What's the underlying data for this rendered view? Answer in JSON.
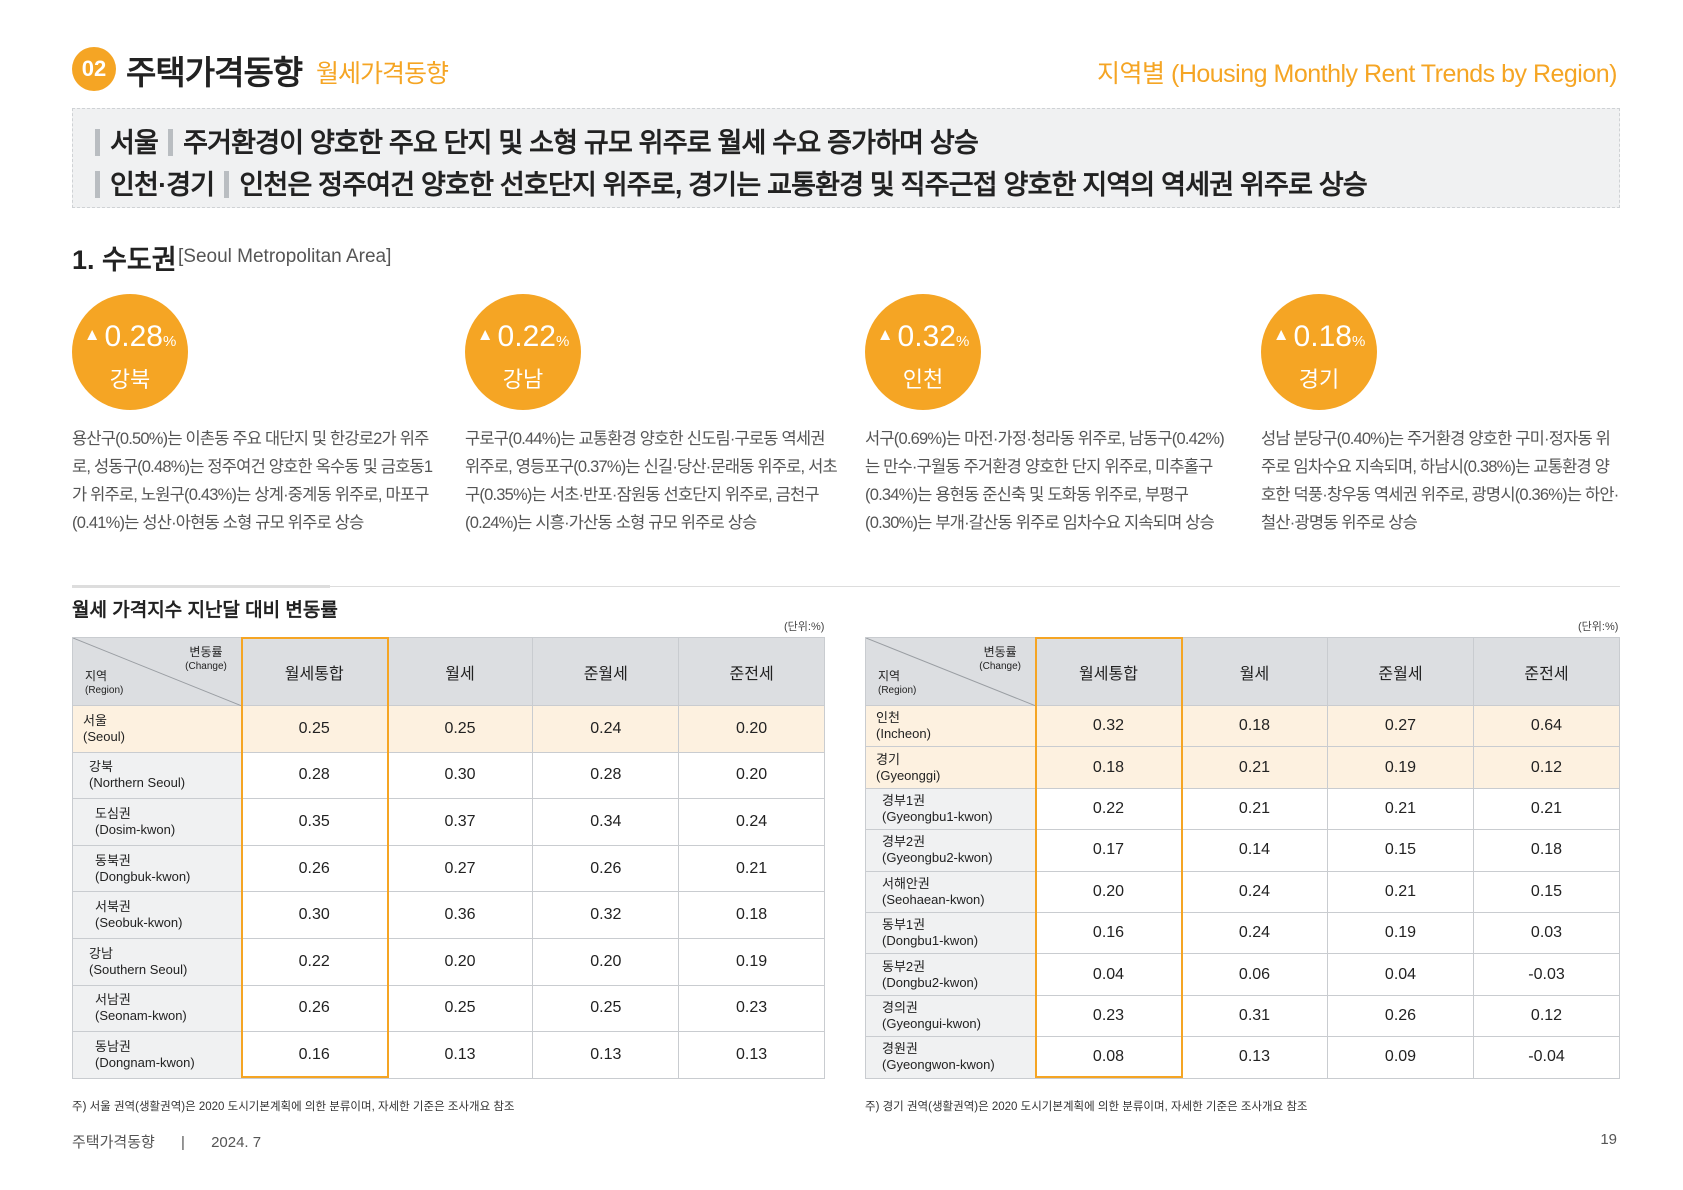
{
  "header": {
    "section_num": "02",
    "title": "주택가격동향",
    "subtitle": "월세가격동향",
    "right_title": "지역별 (Housing Monthly Rent Trends by Region)"
  },
  "summary": [
    {
      "region": "서울",
      "text": "주거환경이 양호한 주요 단지 및 소형 규모 위주로 월세 수요 증가하며 상승"
    },
    {
      "region": "인천·경기",
      "text": "인천은 정주여건 양호한 선호단지 위주로, 경기는 교통환경 및 직주근접 양호한 지역의 역세권 위주로 상승"
    }
  ],
  "section": {
    "title": "1. 수도권",
    "subtitle": "[Seoul Metropolitan Area]"
  },
  "indicators": [
    {
      "arrow": "▲",
      "value": "0.28",
      "unit": "%",
      "name": "강북",
      "desc": "용산구(0.50%)는 이촌동 주요 대단지 및 한강로2가 위주로, 성동구(0.48%)는 정주여건 양호한 옥수동 및 금호동1가 위주로, 노원구(0.43%)는 상계·중계동 위주로, 마포구(0.41%)는 성산·아현동 소형 규모 위주로 상승"
    },
    {
      "arrow": "▲",
      "value": "0.22",
      "unit": "%",
      "name": "강남",
      "desc": "구로구(0.44%)는 교통환경 양호한 신도림·구로동 역세권 위주로, 영등포구(0.37%)는 신길·당산·문래동 위주로, 서초구(0.35%)는 서초·반포·잠원동 선호단지 위주로, 금천구(0.24%)는 시흥·가산동 소형 규모 위주로 상승"
    },
    {
      "arrow": "▲",
      "value": "0.32",
      "unit": "%",
      "name": "인천",
      "desc": "서구(0.69%)는 마전·가정·청라동 위주로, 남동구(0.42%)는 만수·구월동 주거환경 양호한 단지 위주로, 미추홀구(0.34%)는 용현동 준신축 및 도화동 위주로, 부평구(0.30%)는 부개·갈산동 위주로 임차수요 지속되며 상승"
    },
    {
      "arrow": "▲",
      "value": "0.18",
      "unit": "%",
      "name": "경기",
      "desc": "성남 분당구(0.40%)는 주거환경 양호한 구미·정자동 위주로 임차수요 지속되며, 하남시(0.38%)는 교통환경 양호한 덕풍·창우동 역세권 위주로, 광명시(0.36%)는 하안·철산·광명동 위주로 상승"
    }
  ],
  "table_title": "월세 가격지수 지난달 대비 변동률",
  "unit_label": "(단위:%)",
  "diag_header": {
    "change_ko": "변동률",
    "change_en": "(Change)",
    "region_ko": "지역",
    "region_en": "(Region)"
  },
  "columns": [
    "월세통합",
    "월세",
    "준월세",
    "준전세"
  ],
  "left_table": {
    "rows": [
      {
        "ko": "서울",
        "en": "(Seoul)",
        "values": [
          "0.25",
          "0.25",
          "0.24",
          "0.20"
        ],
        "highlight": true,
        "indent": 0
      },
      {
        "ko": "강북",
        "en": "(Northern Seoul)",
        "values": [
          "0.28",
          "0.30",
          "0.28",
          "0.20"
        ],
        "indent": 1
      },
      {
        "ko": "도심권",
        "en": "(Dosim-kwon)",
        "values": [
          "0.35",
          "0.37",
          "0.34",
          "0.24"
        ],
        "indent": 2
      },
      {
        "ko": "동북권",
        "en": "(Dongbuk-kwon)",
        "values": [
          "0.26",
          "0.27",
          "0.26",
          "0.21"
        ],
        "indent": 2
      },
      {
        "ko": "서북권",
        "en": "(Seobuk-kwon)",
        "values": [
          "0.30",
          "0.36",
          "0.32",
          "0.18"
        ],
        "indent": 2
      },
      {
        "ko": "강남",
        "en": "(Southern Seoul)",
        "values": [
          "0.22",
          "0.20",
          "0.20",
          "0.19"
        ],
        "indent": 1
      },
      {
        "ko": "서남권",
        "en": "(Seonam-kwon)",
        "values": [
          "0.26",
          "0.25",
          "0.25",
          "0.23"
        ],
        "indent": 2
      },
      {
        "ko": "동남권",
        "en": "(Dongnam-kwon)",
        "values": [
          "0.16",
          "0.13",
          "0.13",
          "0.13"
        ],
        "indent": 2
      }
    ],
    "footnote": "주) 서울 권역(생활권역)은 2020 도시기본계획에 의한 분류이며, 자세한 기준은 조사개요 참조"
  },
  "right_table": {
    "rows": [
      {
        "ko": "인천",
        "en": "(Incheon)",
        "values": [
          "0.32",
          "0.18",
          "0.27",
          "0.64"
        ],
        "highlight": true,
        "indent": 0
      },
      {
        "ko": "경기",
        "en": "(Gyeonggi)",
        "values": [
          "0.18",
          "0.21",
          "0.19",
          "0.12"
        ],
        "highlight": true,
        "indent": 0
      },
      {
        "ko": "경부1권",
        "en": "(Gyeongbu1-kwon)",
        "values": [
          "0.22",
          "0.21",
          "0.21",
          "0.21"
        ],
        "indent": 1
      },
      {
        "ko": "경부2권",
        "en": "(Gyeongbu2-kwon)",
        "values": [
          "0.17",
          "0.14",
          "0.15",
          "0.18"
        ],
        "indent": 1
      },
      {
        "ko": "서해안권",
        "en": "(Seohaean-kwon)",
        "values": [
          "0.20",
          "0.24",
          "0.21",
          "0.15"
        ],
        "indent": 1
      },
      {
        "ko": "동부1권",
        "en": "(Dongbu1-kwon)",
        "values": [
          "0.16",
          "0.24",
          "0.19",
          "0.03"
        ],
        "indent": 1
      },
      {
        "ko": "동부2권",
        "en": "(Dongbu2-kwon)",
        "values": [
          "0.04",
          "0.06",
          "0.04",
          "-0.03"
        ],
        "indent": 1
      },
      {
        "ko": "경의권",
        "en": "(Gyeongui-kwon)",
        "values": [
          "0.23",
          "0.31",
          "0.26",
          "0.12"
        ],
        "indent": 1
      },
      {
        "ko": "경원권",
        "en": "(Gyeongwon-kwon)",
        "values": [
          "0.08",
          "0.13",
          "0.09",
          "-0.04"
        ],
        "indent": 1
      }
    ],
    "footnote": "주) 경기 권역(생활권역)은 2020 도시기본계획에 의한 분류이며, 자세한 기준은 조사개요 참조"
  },
  "footer": {
    "left": "주택가격동향",
    "separator": "|",
    "date": "2024. 7",
    "page": "19"
  },
  "colors": {
    "accent": "#f5a524",
    "highlight_row": "#fdf1e0",
    "header_bg": "#dcdee1",
    "summary_bg": "#f0f1f2"
  }
}
